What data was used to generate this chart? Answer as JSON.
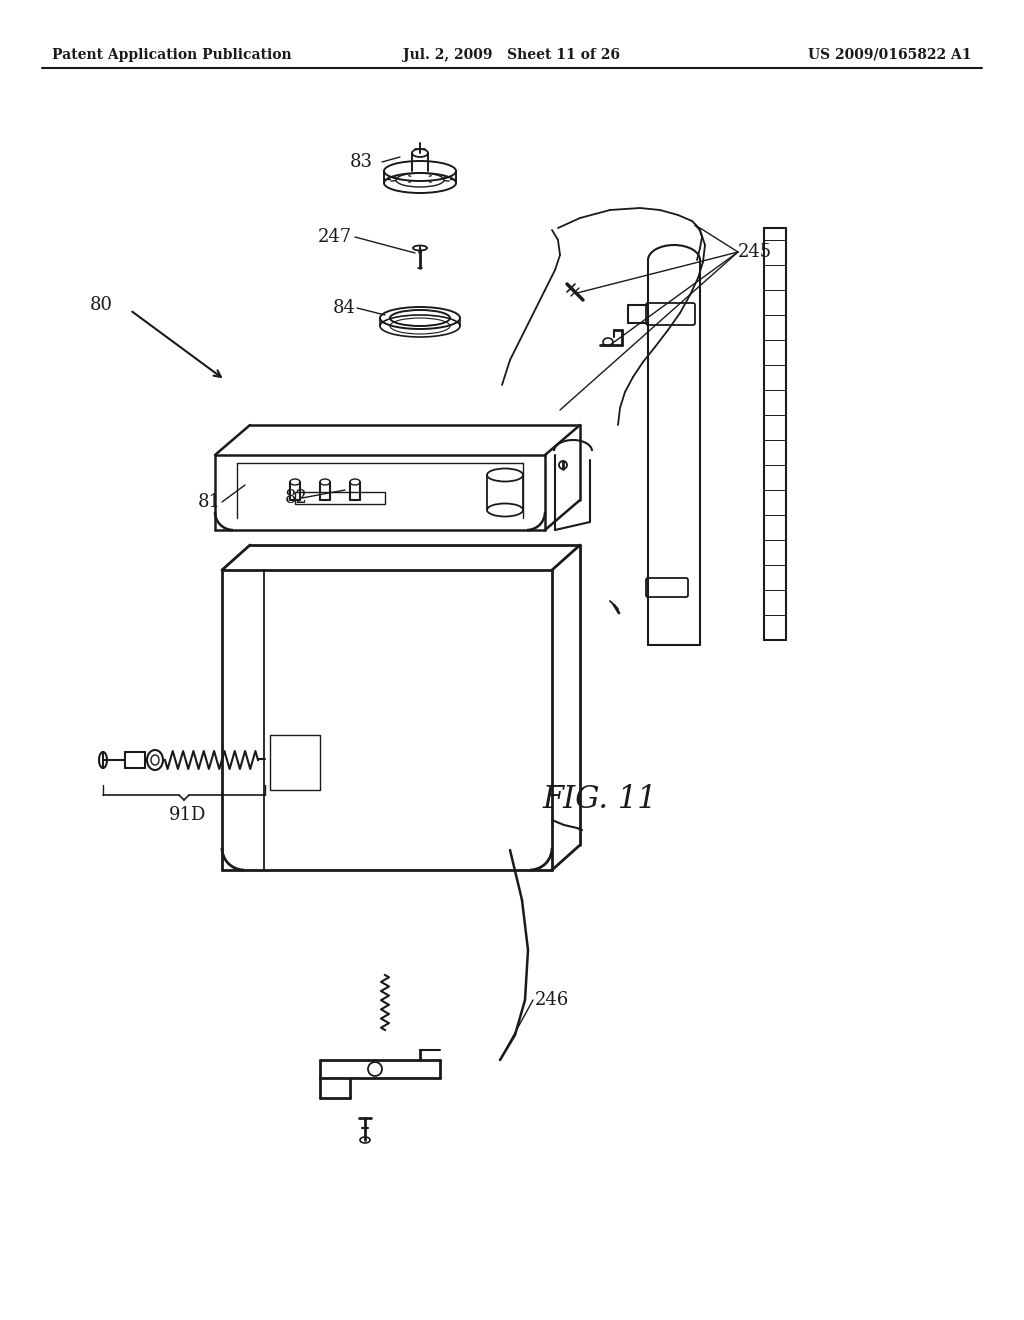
{
  "header_left": "Patent Application Publication",
  "header_center": "Jul. 2, 2009   Sheet 11 of 26",
  "header_right": "US 2009/0165822 A1",
  "fig_label": "FIG. 11",
  "background_color": "#ffffff",
  "line_color": "#1a1a1a",
  "text_color": "#1a1a1a"
}
